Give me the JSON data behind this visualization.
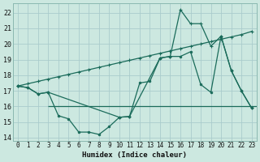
{
  "background_color": "#cce8e0",
  "grid_color": "#aacccc",
  "line_color": "#1a6b5a",
  "xlabel": "Humidex (Indice chaleur)",
  "xlim": [
    -0.5,
    23.5
  ],
  "ylim": [
    13.8,
    22.6
  ],
  "yticks": [
    14,
    15,
    16,
    17,
    18,
    19,
    20,
    21,
    22
  ],
  "xticks": [
    0,
    1,
    2,
    3,
    4,
    5,
    6,
    7,
    8,
    9,
    10,
    11,
    12,
    13,
    14,
    15,
    16,
    17,
    18,
    19,
    20,
    21,
    22,
    23
  ],
  "series1_x": [
    0,
    1,
    2,
    3,
    4,
    5,
    6,
    7,
    8,
    9,
    10,
    11,
    12,
    13,
    14,
    15,
    16,
    17,
    18,
    19,
    20,
    21,
    22,
    23
  ],
  "series1_y": [
    17.3,
    17.2,
    16.8,
    16.9,
    15.4,
    15.2,
    14.35,
    14.35,
    14.2,
    14.7,
    15.3,
    15.35,
    17.5,
    17.6,
    19.1,
    19.2,
    19.2,
    19.5,
    17.4,
    16.9,
    20.5,
    18.3,
    17.0,
    15.9
  ],
  "series2_x": [
    0,
    1,
    2,
    3,
    4,
    5,
    6,
    7,
    8,
    9,
    10,
    11,
    12,
    13,
    14,
    15,
    16,
    17,
    18,
    19,
    20,
    21,
    22,
    23
  ],
  "series2_y": [
    17.3,
    17.45,
    17.6,
    17.75,
    17.9,
    18.05,
    18.2,
    18.35,
    18.5,
    18.65,
    18.8,
    18.95,
    19.1,
    19.25,
    19.4,
    19.55,
    19.7,
    19.85,
    20.0,
    20.15,
    20.3,
    20.45,
    20.6,
    20.8
  ],
  "series3_x": [
    0,
    1,
    2,
    3,
    10,
    11,
    14,
    15,
    16,
    17,
    18,
    19,
    20,
    21,
    22,
    23
  ],
  "series3_y": [
    17.3,
    17.2,
    16.8,
    16.9,
    15.3,
    15.35,
    19.1,
    19.2,
    22.2,
    21.3,
    21.3,
    19.85,
    20.5,
    18.3,
    17.0,
    15.9
  ],
  "hline_y": 16.0,
  "hline_x_start": 3.0,
  "hline_x_end": 23.5
}
